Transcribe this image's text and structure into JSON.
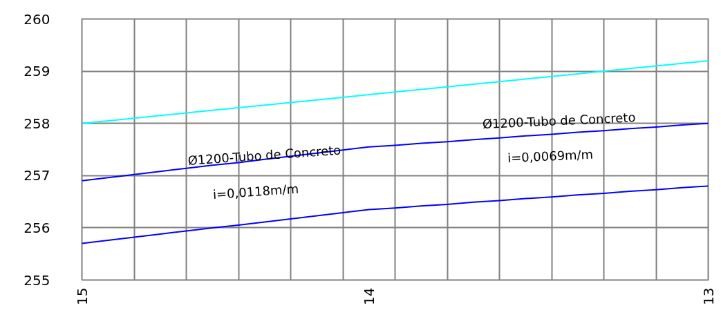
{
  "chart_data": {
    "type": "line",
    "categories": [
      "15",
      null,
      null,
      null,
      null,
      null,
      null,
      null,
      null,
      null,
      null,
      "14",
      null,
      null,
      null,
      null,
      null,
      null,
      null,
      null,
      null,
      null,
      null,
      null,
      "13"
    ],
    "series": [
      {
        "color": "#00ffff",
        "values": [
          258.0,
          258.05,
          258.1,
          258.15,
          258.2,
          258.25,
          258.3,
          258.35,
          258.4,
          258.45,
          258.5,
          258.55,
          258.6,
          258.65,
          258.7,
          258.75,
          258.8,
          258.85,
          258.9,
          258.95,
          259.0,
          259.05,
          259.1,
          259.15,
          259.2
        ]
      },
      {
        "color": "#0000ff",
        "values": [
          256.9,
          256.96,
          257.02,
          257.08,
          257.14,
          257.2,
          257.25,
          257.31,
          257.37,
          257.43,
          257.49,
          257.55,
          257.58,
          257.62,
          257.65,
          257.69,
          257.72,
          257.76,
          257.79,
          257.83,
          257.86,
          257.9,
          257.93,
          257.97,
          258.0
        ]
      },
      {
        "color": "#0000ff",
        "values": [
          255.7,
          255.76,
          255.82,
          255.88,
          255.94,
          256.0,
          256.05,
          256.11,
          256.17,
          256.23,
          256.29,
          256.35,
          256.38,
          256.42,
          256.45,
          256.49,
          256.52,
          256.56,
          256.59,
          256.63,
          256.66,
          256.7,
          256.73,
          256.77,
          256.8
        ]
      }
    ],
    "ylim": [
      255,
      260
    ],
    "yticks": [
      255,
      256,
      257,
      258,
      259,
      260
    ],
    "grid": true,
    "line_style": "solid",
    "annotations": [
      "Ø1200-Tubo de Concreto",
      "i=0,0118m/m",
      "Ø1200-Tubo de Concreto",
      "i=0,0069m/m"
    ]
  }
}
